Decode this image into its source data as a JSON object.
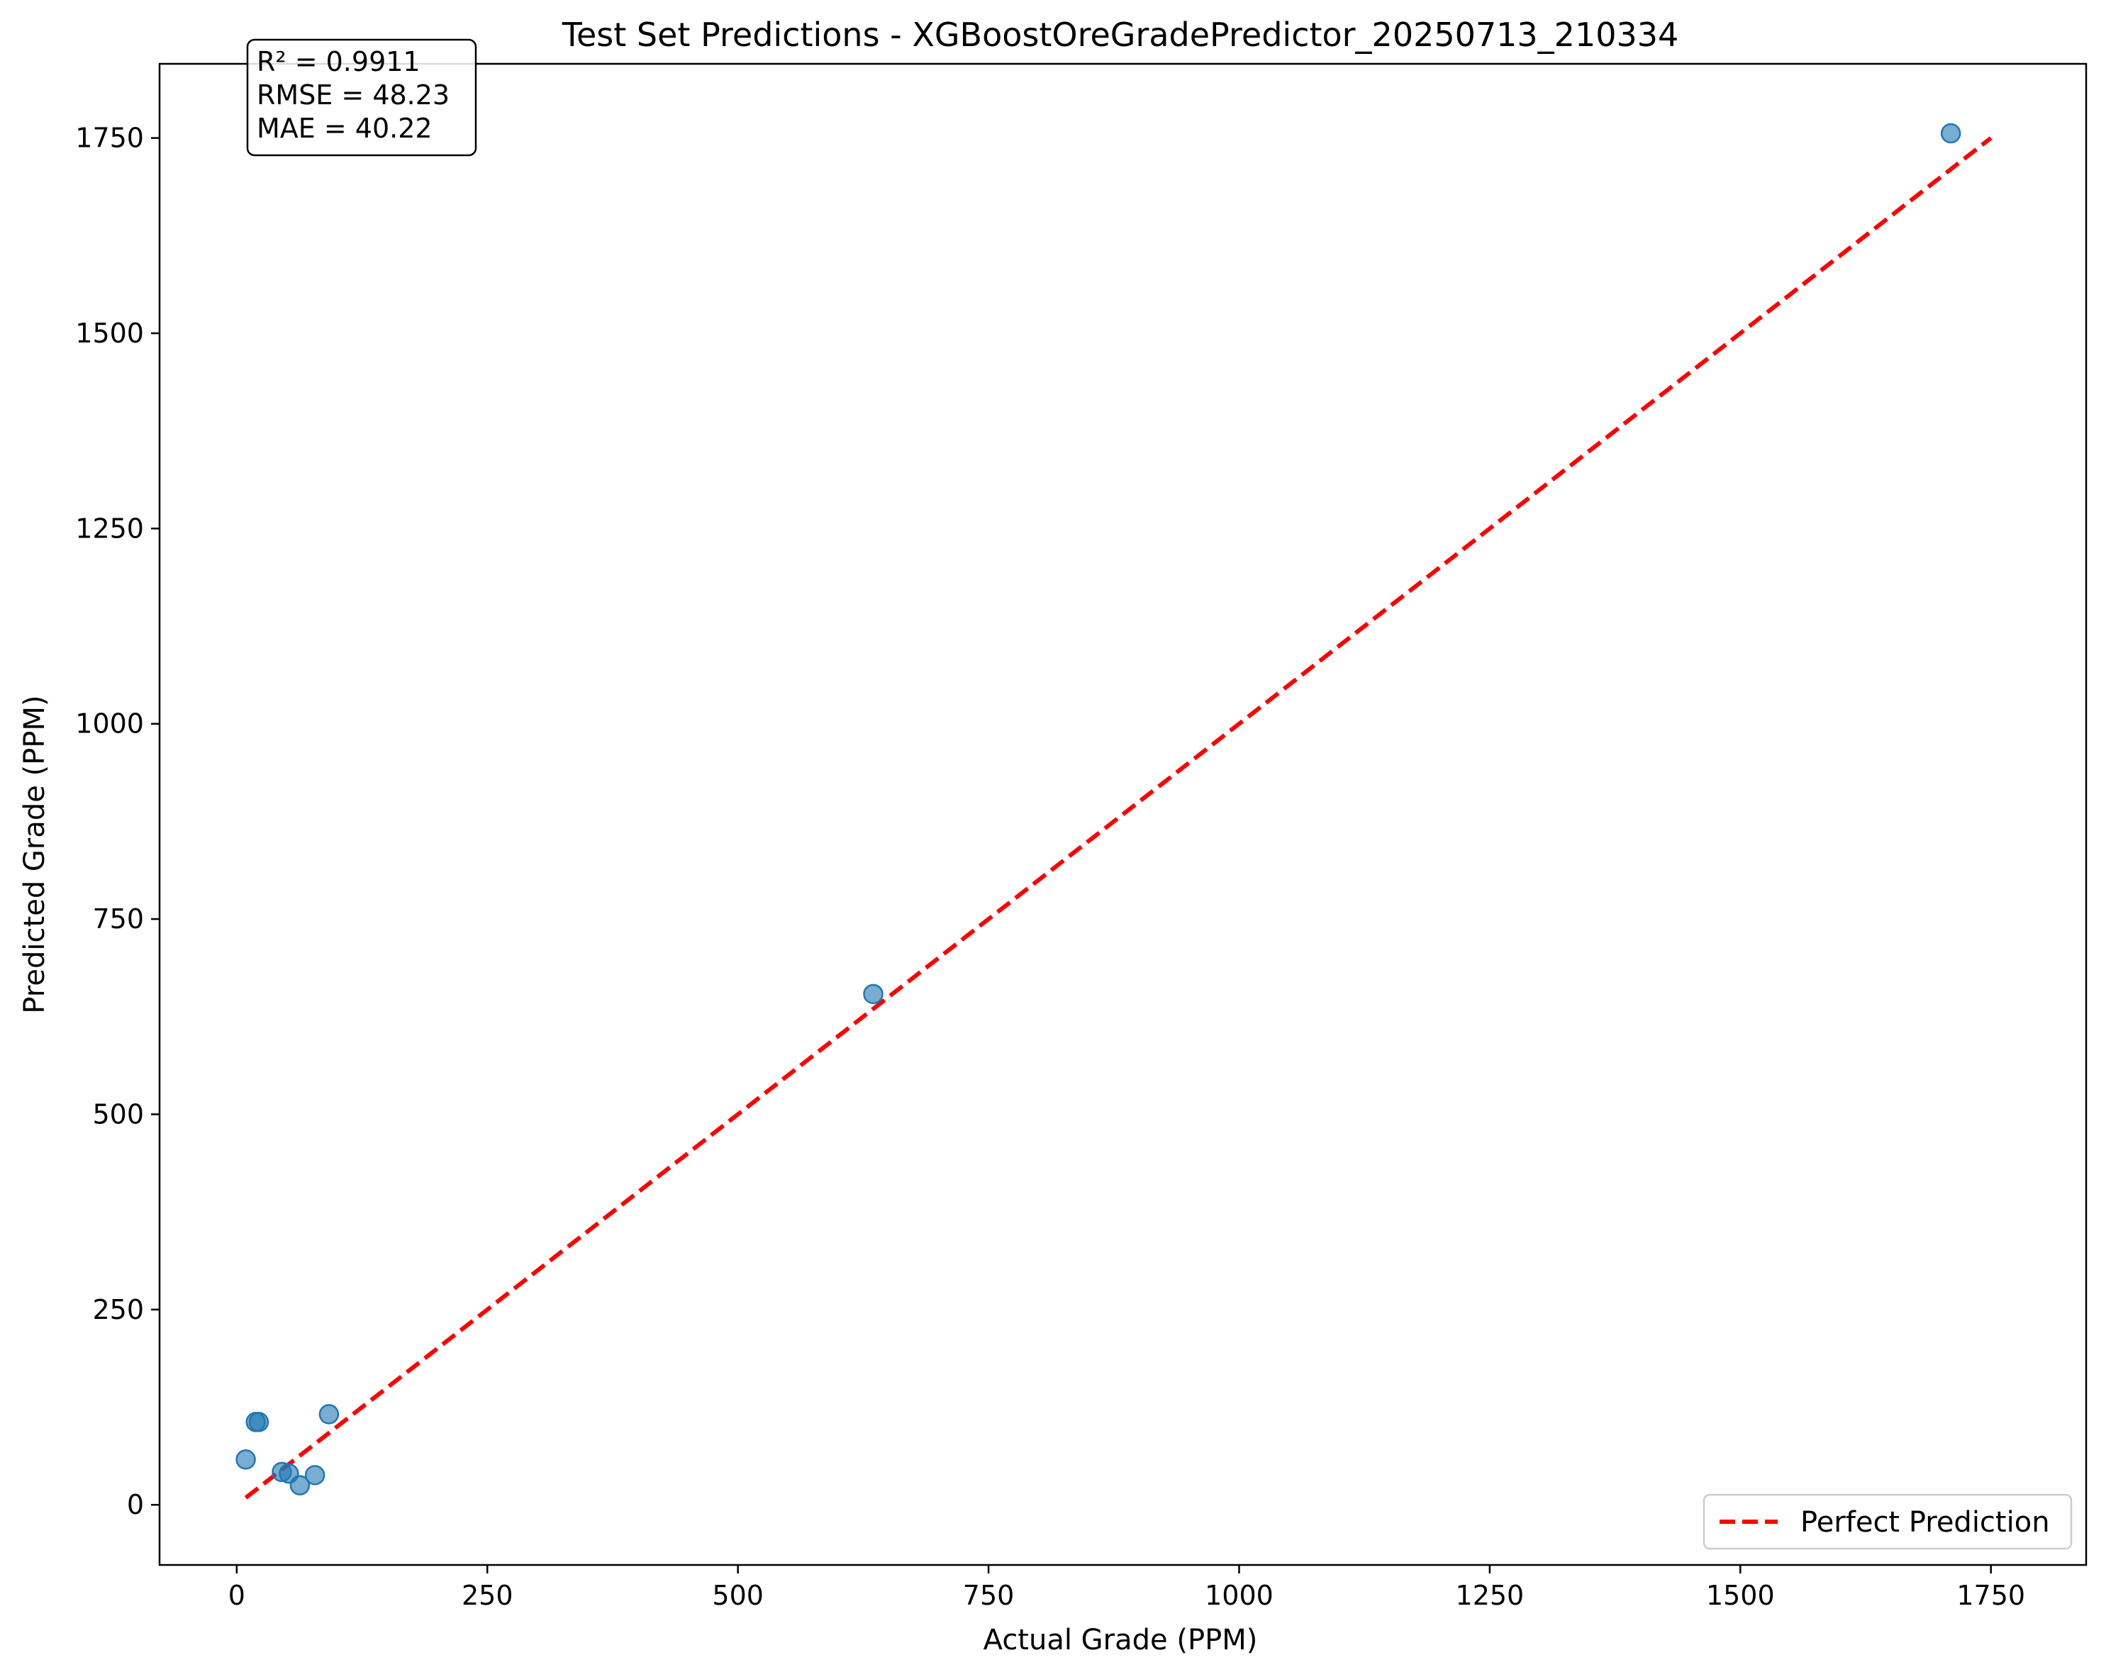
{
  "chart_data": {
    "type": "scatter",
    "title": "Test Set Predictions - XGBoostOreGradePredictor_20250713_210334",
    "xlabel": "Actual Grade (PPM)",
    "ylabel": "Predicted Grade (PPM)",
    "xlim": [
      -77,
      1845
    ],
    "ylim": [
      -77,
      1845
    ],
    "x_ticks": [
      0,
      250,
      500,
      750,
      1000,
      1250,
      1500,
      1750
    ],
    "y_ticks": [
      0,
      250,
      500,
      750,
      1000,
      1250,
      1500,
      1750
    ],
    "grid": false,
    "legend_position": "lower-right",
    "stats_box": [
      "R² = 0.9911",
      "RMSE = 48.23",
      "MAE = 40.22"
    ],
    "series": [
      {
        "type": "scatter",
        "color": "#1f77b4",
        "points": [
          {
            "x": 9,
            "y": 58
          },
          {
            "x": 19,
            "y": 106
          },
          {
            "x": 22,
            "y": 106
          },
          {
            "x": 45,
            "y": 42
          },
          {
            "x": 52,
            "y": 40
          },
          {
            "x": 63,
            "y": 25
          },
          {
            "x": 78,
            "y": 38
          },
          {
            "x": 92,
            "y": 116
          },
          {
            "x": 635,
            "y": 654
          },
          {
            "x": 1710,
            "y": 1756
          }
        ]
      },
      {
        "type": "line",
        "name": "Perfect Prediction",
        "color": "#ff0000",
        "style": "dashed",
        "points": [
          {
            "x": 9,
            "y": 9
          },
          {
            "x": 1750,
            "y": 1750
          }
        ]
      }
    ]
  }
}
